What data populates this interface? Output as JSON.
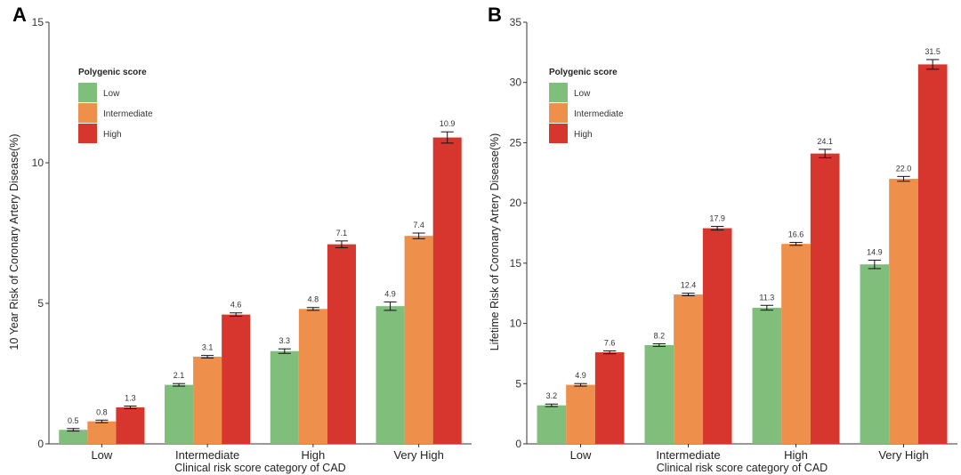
{
  "figure": {
    "legend_title": "Polygenic score",
    "series_colors": {
      "Low": "#7fbf7b",
      "Intermediate": "#ee8f4b",
      "High": "#d6362d"
    }
  },
  "chart_data": [
    {
      "panel": "A",
      "type": "bar",
      "title": "",
      "xlabel": "Clinical risk score category of CAD",
      "ylabel": "10 Year Risk of Coronary Artery Disease(%)",
      "categories": [
        "Low",
        "Intermediate",
        "High",
        "Very High"
      ],
      "ylim": [
        0,
        15
      ],
      "yticks": [
        0,
        5,
        10,
        15
      ],
      "ytick_labels": [
        "0",
        "5",
        "10",
        "15"
      ],
      "legend": {
        "title": "Polygenic score",
        "entries": [
          "Low",
          "Intermediate",
          "High"
        ],
        "placement": "top-left"
      },
      "series": [
        {
          "name": "Low",
          "values": [
            0.5,
            2.1,
            3.3,
            4.9
          ],
          "errors": [
            0.02,
            0.04,
            0.08,
            0.15
          ],
          "labels": [
            "0.5",
            "2.1",
            "3.3",
            "4.9"
          ]
        },
        {
          "name": "Intermediate",
          "values": [
            0.8,
            3.1,
            4.8,
            7.4
          ],
          "errors": [
            0.02,
            0.03,
            0.05,
            0.1
          ],
          "labels": [
            "0.8",
            "3.1",
            "4.8",
            "7.4"
          ]
        },
        {
          "name": "High",
          "values": [
            1.3,
            4.6,
            7.1,
            10.9
          ],
          "errors": [
            0.03,
            0.06,
            0.12,
            0.2
          ],
          "labels": [
            "1.3",
            "4.6",
            "7.1",
            "10.9"
          ]
        }
      ]
    },
    {
      "panel": "B",
      "type": "bar",
      "title": "",
      "xlabel": "Clinical risk score category of CAD",
      "ylabel": "Lifetime Risk of Coronary Artery Disease(%)",
      "categories": [
        "Low",
        "Intermediate",
        "High",
        "Very High"
      ],
      "ylim": [
        0,
        35
      ],
      "yticks": [
        0,
        5,
        10,
        15,
        20,
        25,
        30,
        35
      ],
      "ytick_labels": [
        "0",
        "5",
        "10",
        "15",
        "20",
        "25",
        "30",
        "35"
      ],
      "legend": {
        "title": "Polygenic score",
        "entries": [
          "Low",
          "Intermediate",
          "High"
        ],
        "placement": "top-left"
      },
      "series": [
        {
          "name": "Low",
          "values": [
            3.2,
            8.2,
            11.3,
            14.9
          ],
          "errors": [
            0.05,
            0.08,
            0.2,
            0.35
          ],
          "labels": [
            "3.2",
            "8.2",
            "11.3",
            "14.9"
          ]
        },
        {
          "name": "Intermediate",
          "values": [
            4.9,
            12.4,
            16.6,
            22.0
          ],
          "errors": [
            0.05,
            0.07,
            0.12,
            0.2
          ],
          "labels": [
            "4.9",
            "12.4",
            "16.6",
            "22.0"
          ]
        },
        {
          "name": "High",
          "values": [
            7.6,
            17.9,
            24.1,
            31.5
          ],
          "errors": [
            0.12,
            0.15,
            0.35,
            0.4
          ],
          "labels": [
            "7.6",
            "17.9",
            "24.1",
            "31.5"
          ]
        }
      ]
    }
  ]
}
